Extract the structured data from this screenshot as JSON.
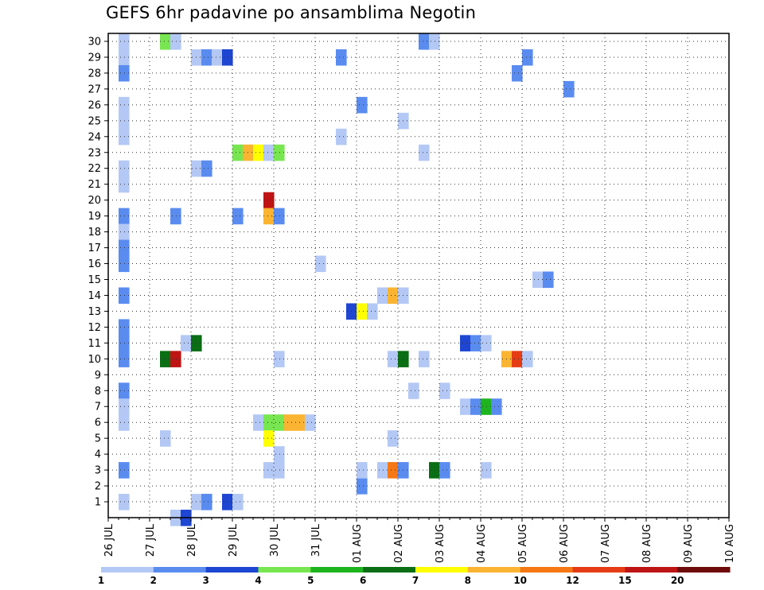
{
  "chart_data": {
    "type": "heatmap",
    "title": "GEFS 6hr padavine po ansamblima Negotin",
    "xlabel": "",
    "ylabel": "",
    "x_ticks": [
      "26 JUL",
      "27 JUL",
      "28 JUL",
      "29 JUL",
      "30 JUL",
      "31 JUL",
      "01 AUG",
      "02 AUG",
      "03 AUG",
      "04 AUG",
      "05 AUG",
      "06 AUG",
      "07 AUG",
      "08 AUG",
      "09 AUG",
      "10 AUG"
    ],
    "x_range_days": [
      0,
      15
    ],
    "x_step_days": 0.25,
    "y_ticks": [
      1,
      2,
      3,
      4,
      5,
      6,
      7,
      8,
      9,
      10,
      11,
      12,
      13,
      14,
      15,
      16,
      17,
      18,
      19,
      20,
      21,
      22,
      23,
      24,
      25,
      26,
      27,
      28,
      29,
      30
    ],
    "y_range": [
      0,
      30
    ],
    "grid": true,
    "legend": {
      "placement": "bottom",
      "labels": [
        "1",
        "2",
        "3",
        "4",
        "5",
        "6",
        "7",
        "8",
        "10",
        "12",
        "15",
        "20"
      ],
      "colors": [
        "#b4c8f5",
        "#5a8cf0",
        "#1e46d2",
        "#78e650",
        "#1eb41e",
        "#0a6e14",
        "#ffff00",
        "#fab432",
        "#f57814",
        "#e63c14",
        "#be1414",
        "#6e0a0a"
      ]
    },
    "color_bins": [
      "#b4c8f5",
      "#5a8cf0",
      "#1e46d2",
      "#78e650",
      "#1eb41e",
      "#0a6e14",
      "#ffff00",
      "#fab432",
      "#f57814",
      "#e63c14",
      "#be1414",
      "#6e0a0a"
    ],
    "cells": [
      [
        1,
        30,
        1
      ],
      [
        1,
        29,
        1
      ],
      [
        1,
        28,
        2
      ],
      [
        1,
        26,
        1
      ],
      [
        1,
        25,
        1
      ],
      [
        1,
        24,
        1
      ],
      [
        1,
        22,
        1
      ],
      [
        1,
        21,
        1
      ],
      [
        1,
        19,
        2
      ],
      [
        1,
        18,
        1
      ],
      [
        1,
        17,
        2
      ],
      [
        1,
        16,
        2
      ],
      [
        1,
        14,
        2
      ],
      [
        1,
        12,
        2
      ],
      [
        1,
        11,
        2
      ],
      [
        1,
        10,
        2
      ],
      [
        1,
        8,
        2
      ],
      [
        1,
        7,
        1
      ],
      [
        1,
        6,
        1
      ],
      [
        1,
        3,
        2
      ],
      [
        1,
        1,
        1
      ],
      [
        5,
        30,
        4
      ],
      [
        5,
        10,
        6
      ],
      [
        5,
        5,
        1
      ],
      [
        6,
        30,
        1
      ],
      [
        6,
        19,
        2
      ],
      [
        6,
        10,
        11
      ],
      [
        6,
        0,
        1
      ],
      [
        7,
        11,
        1
      ],
      [
        7,
        0,
        3
      ],
      [
        8,
        29,
        1
      ],
      [
        8,
        22,
        1
      ],
      [
        8,
        11,
        6
      ],
      [
        8,
        1,
        1
      ],
      [
        9,
        29,
        2
      ],
      [
        9,
        22,
        2
      ],
      [
        9,
        1,
        2
      ],
      [
        10,
        29,
        1
      ],
      [
        11,
        29,
        3
      ],
      [
        11,
        1,
        3
      ],
      [
        12,
        23,
        4
      ],
      [
        12,
        19,
        2
      ],
      [
        12,
        1,
        1
      ],
      [
        13,
        23,
        8
      ],
      [
        14,
        23,
        7
      ],
      [
        14,
        6,
        1
      ],
      [
        15,
        23,
        1
      ],
      [
        15,
        20,
        11
      ],
      [
        15,
        19,
        8
      ],
      [
        15,
        6,
        4
      ],
      [
        15,
        5,
        7
      ],
      [
        15,
        3,
        1
      ],
      [
        16,
        23,
        4
      ],
      [
        16,
        19,
        2
      ],
      [
        16,
        10,
        1
      ],
      [
        16,
        6,
        4
      ],
      [
        16,
        4,
        1
      ],
      [
        16,
        3,
        1
      ],
      [
        17,
        6,
        8
      ],
      [
        18,
        6,
        8
      ],
      [
        19,
        6,
        1
      ],
      [
        20,
        16,
        1
      ],
      [
        22,
        29,
        2
      ],
      [
        22,
        24,
        1
      ],
      [
        23,
        13,
        3
      ],
      [
        24,
        26,
        2
      ],
      [
        24,
        13,
        7
      ],
      [
        24,
        2,
        2
      ],
      [
        24,
        3,
        1
      ],
      [
        25,
        13,
        1
      ],
      [
        26,
        14,
        1
      ],
      [
        26,
        3,
        1
      ],
      [
        27,
        14,
        8
      ],
      [
        27,
        10,
        1
      ],
      [
        27,
        5,
        1
      ],
      [
        27,
        3,
        9
      ],
      [
        28,
        25,
        1
      ],
      [
        28,
        14,
        1
      ],
      [
        28,
        10,
        6
      ],
      [
        28,
        3,
        2
      ],
      [
        29,
        8,
        1
      ],
      [
        30,
        30,
        2
      ],
      [
        30,
        23,
        1
      ],
      [
        30,
        10,
        1
      ],
      [
        31,
        30,
        1
      ],
      [
        31,
        3,
        6
      ],
      [
        32,
        8,
        1
      ],
      [
        32,
        3,
        2
      ],
      [
        34,
        11,
        3
      ],
      [
        34,
        7,
        1
      ],
      [
        35,
        11,
        2
      ],
      [
        35,
        7,
        2
      ],
      [
        36,
        11,
        1
      ],
      [
        36,
        7,
        5
      ],
      [
        36,
        3,
        1
      ],
      [
        37,
        7,
        2
      ],
      [
        38,
        10,
        8
      ],
      [
        39,
        28,
        2
      ],
      [
        39,
        10,
        10
      ],
      [
        40,
        29,
        2
      ],
      [
        40,
        10,
        1
      ],
      [
        41,
        15,
        1
      ],
      [
        42,
        15,
        2
      ],
      [
        44,
        27,
        2
      ]
    ]
  }
}
